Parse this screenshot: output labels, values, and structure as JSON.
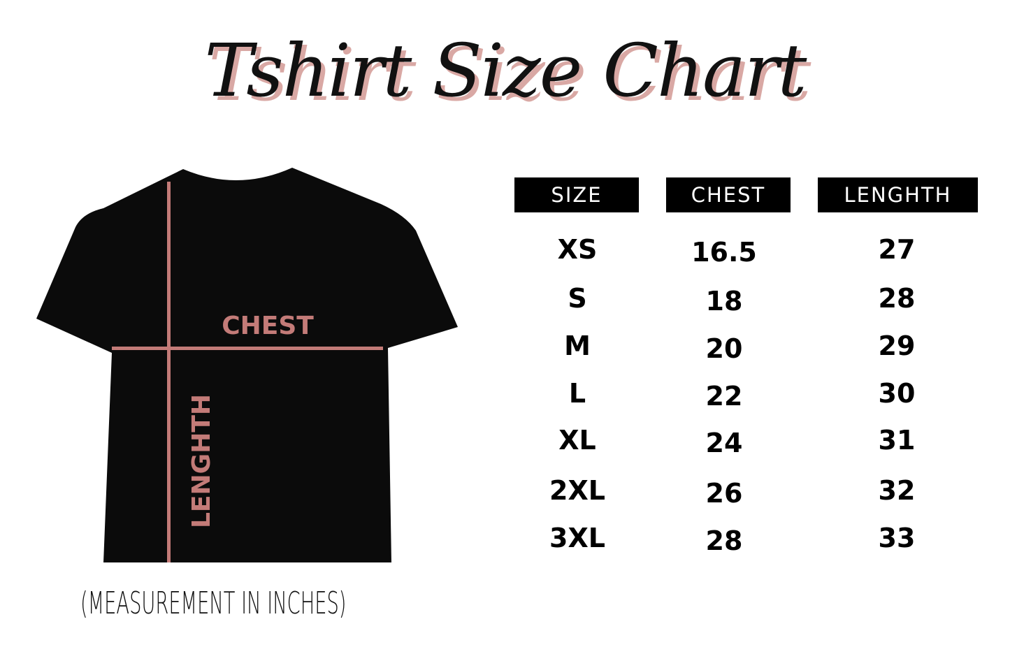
{
  "title": "Tshirt Size Chart",
  "diagram": {
    "chest_label": "CHEST",
    "length_label": "LENGHTH",
    "shirt_color": "#0b0b0b",
    "line_color": "#c37b78"
  },
  "table": {
    "headers": [
      "SIZE",
      "CHEST",
      "LENGHTH"
    ],
    "rows": [
      [
        "XS",
        "16.5",
        "27"
      ],
      [
        "S",
        "18",
        "28"
      ],
      [
        "M",
        "20",
        "29"
      ],
      [
        "L",
        "22",
        "30"
      ],
      [
        "XL",
        "24",
        "31"
      ],
      [
        "2XL",
        "26",
        "32"
      ],
      [
        "3XL",
        "28",
        "33"
      ]
    ]
  },
  "note": "(MEASUREMENT IN INCHES)"
}
